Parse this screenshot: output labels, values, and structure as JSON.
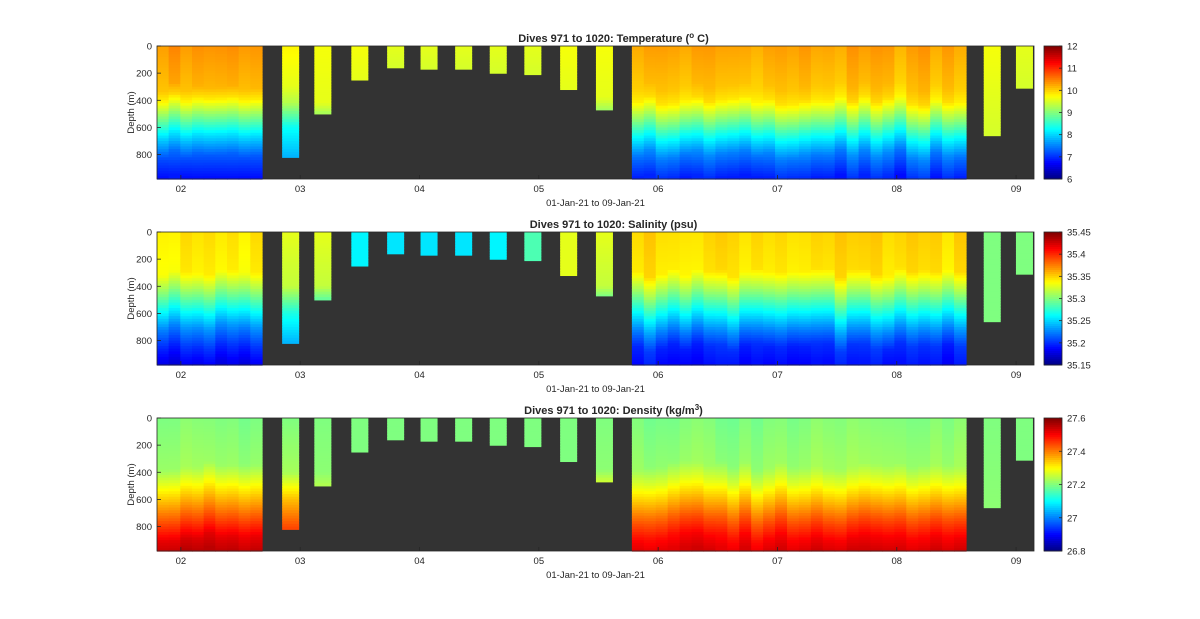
{
  "figure": {
    "panels": [
      {
        "title": "Dives 971 to 1020: Temperature (",
        "title_sup": "o",
        "title_after": " C)",
        "ylabel": "Depth (m)",
        "xlabel": "01-Jan-21 to 09-Jan-21",
        "yticks": [
          "0",
          "200",
          "400",
          "600",
          "800"
        ],
        "xticks": [
          "02",
          "03",
          "04",
          "05",
          "06",
          "07",
          "08",
          "09"
        ],
        "colorbar": {
          "ticks": [
            "12",
            "11",
            "10",
            "9",
            "8",
            "7",
            "6"
          ]
        }
      },
      {
        "title": "Dives 971 to 1020: Salinity (psu)",
        "title_sup": "",
        "title_after": "",
        "ylabel": "Depth (m)",
        "xlabel": "01-Jan-21 to 09-Jan-21",
        "yticks": [
          "0",
          "200",
          "400",
          "600",
          "800"
        ],
        "xticks": [
          "02",
          "03",
          "04",
          "05",
          "06",
          "07",
          "08",
          "09"
        ],
        "colorbar": {
          "ticks": [
            "35.45",
            "35.4",
            "35.35",
            "35.3",
            "35.25",
            "35.2",
            "35.15"
          ]
        }
      },
      {
        "title": "Dives 971 to 1020: Density (kg/m",
        "title_sup": "3",
        "title_after": ")",
        "ylabel": "Depth (m)",
        "xlabel": "01-Jan-21 to 09-Jan-21",
        "yticks": [
          "0",
          "200",
          "400",
          "600",
          "800"
        ],
        "xticks": [
          "02",
          "03",
          "04",
          "05",
          "06",
          "07",
          "08",
          "09"
        ],
        "colorbar": {
          "ticks": [
            "27.6",
            "27.4",
            "27.2",
            "27",
            "26.8"
          ]
        }
      }
    ]
  },
  "chart_data": [
    {
      "type": "heatmap",
      "title": "Dives 971 to 1020: Temperature (o C)",
      "xlabel": "01-Jan-21 to 09-Jan-21",
      "ylabel": "Depth (m)",
      "x_range_days": [
        1.8,
        9.15
      ],
      "ylim": [
        980,
        0
      ],
      "colorbar_range": [
        6,
        12
      ],
      "colormap": "jet",
      "background_color": "#333333",
      "dive_groups": [
        {
          "start_day": 1.8,
          "end_day": 2.68,
          "max_depth_m": 980,
          "profile": [
            [
              0,
              10.4
            ],
            [
              300,
              10.2
            ],
            [
              380,
              9.9
            ],
            [
              500,
              9.1
            ],
            [
              650,
              8.1
            ],
            [
              800,
              7.3
            ],
            [
              980,
              6.8
            ]
          ]
        },
        {
          "start_day": 5.78,
          "end_day": 8.58,
          "max_depth_m": 980,
          "profile": [
            [
              0,
              10.3
            ],
            [
              300,
              10.1
            ],
            [
              400,
              9.9
            ],
            [
              520,
              9.2
            ],
            [
              660,
              8.3
            ],
            [
              800,
              7.5
            ],
            [
              980,
              6.9
            ]
          ]
        }
      ],
      "short_dives": [
        {
          "center_day": 2.92,
          "max_depth_m": 820,
          "profile": [
            [
              0,
              9.8
            ],
            [
              300,
              9.6
            ],
            [
              420,
              9.3
            ],
            [
              600,
              8.3
            ],
            [
              820,
              7.8
            ]
          ]
        },
        {
          "center_day": 3.19,
          "max_depth_m": 500,
          "profile": [
            [
              0,
              9.7
            ],
            [
              420,
              9.6
            ],
            [
              500,
              9.2
            ]
          ]
        },
        {
          "center_day": 3.5,
          "max_depth_m": 250,
          "profile": [
            [
              0,
              9.7
            ],
            [
              250,
              9.6
            ]
          ]
        },
        {
          "center_day": 3.8,
          "max_depth_m": 160,
          "profile": [
            [
              0,
              9.6
            ],
            [
              160,
              9.5
            ]
          ]
        },
        {
          "center_day": 4.08,
          "max_depth_m": 170,
          "profile": [
            [
              0,
              9.6
            ],
            [
              170,
              9.5
            ]
          ]
        },
        {
          "center_day": 4.37,
          "max_depth_m": 170,
          "profile": [
            [
              0,
              9.6
            ],
            [
              170,
              9.5
            ]
          ]
        },
        {
          "center_day": 4.66,
          "max_depth_m": 200,
          "profile": [
            [
              0,
              9.6
            ],
            [
              200,
              9.5
            ]
          ]
        },
        {
          "center_day": 4.95,
          "max_depth_m": 210,
          "profile": [
            [
              0,
              9.6
            ],
            [
              210,
              9.5
            ]
          ]
        },
        {
          "center_day": 5.25,
          "max_depth_m": 320,
          "profile": [
            [
              0,
              9.7
            ],
            [
              320,
              9.6
            ]
          ]
        },
        {
          "center_day": 5.55,
          "max_depth_m": 470,
          "profile": [
            [
              0,
              9.7
            ],
            [
              380,
              9.6
            ],
            [
              470,
              9.2
            ]
          ]
        },
        {
          "center_day": 8.8,
          "max_depth_m": 660,
          "profile": [
            [
              0,
              9.7
            ],
            [
              660,
              9.5
            ]
          ]
        },
        {
          "center_day": 9.07,
          "max_depth_m": 310,
          "profile": [
            [
              0,
              9.6
            ],
            [
              310,
              9.5
            ]
          ]
        }
      ]
    },
    {
      "type": "heatmap",
      "title": "Dives 971 to 1020: Salinity (psu)",
      "xlabel": "01-Jan-21 to 09-Jan-21",
      "ylabel": "Depth (m)",
      "x_range_days": [
        1.8,
        9.15
      ],
      "ylim": [
        980,
        0
      ],
      "colorbar_range": [
        35.15,
        35.45
      ],
      "colormap": "jet",
      "background_color": "#333333",
      "dive_groups": [
        {
          "start_day": 1.8,
          "end_day": 2.68,
          "max_depth_m": 980,
          "profile": [
            [
              0,
              35.345
            ],
            [
              300,
              35.34
            ],
            [
              420,
              35.31
            ],
            [
              560,
              35.27
            ],
            [
              700,
              35.23
            ],
            [
              850,
              35.2
            ],
            [
              980,
              35.18
            ]
          ]
        },
        {
          "start_day": 5.78,
          "end_day": 8.58,
          "max_depth_m": 980,
          "profile": [
            [
              0,
              35.35
            ],
            [
              300,
              35.345
            ],
            [
              440,
              35.31
            ],
            [
              580,
              35.27
            ],
            [
              720,
              35.23
            ],
            [
              850,
              35.2
            ],
            [
              980,
              35.19
            ]
          ]
        }
      ],
      "short_dives": [
        {
          "center_day": 2.92,
          "max_depth_m": 820,
          "profile": [
            [
              0,
              35.33
            ],
            [
              400,
              35.32
            ],
            [
              600,
              35.27
            ],
            [
              820,
              35.24
            ]
          ]
        },
        {
          "center_day": 3.19,
          "max_depth_m": 500,
          "profile": [
            [
              0,
              35.33
            ],
            [
              400,
              35.32
            ],
            [
              500,
              35.29
            ]
          ]
        },
        {
          "center_day": 3.5,
          "max_depth_m": 250,
          "profile": [
            [
              0,
              35.26
            ],
            [
              250,
              35.26
            ]
          ]
        },
        {
          "center_day": 3.8,
          "max_depth_m": 160,
          "profile": [
            [
              0,
              35.255
            ],
            [
              160,
              35.255
            ]
          ]
        },
        {
          "center_day": 4.08,
          "max_depth_m": 170,
          "profile": [
            [
              0,
              35.255
            ],
            [
              170,
              35.255
            ]
          ]
        },
        {
          "center_day": 4.37,
          "max_depth_m": 170,
          "profile": [
            [
              0,
              35.255
            ],
            [
              170,
              35.255
            ]
          ]
        },
        {
          "center_day": 4.66,
          "max_depth_m": 200,
          "profile": [
            [
              0,
              35.26
            ],
            [
              200,
              35.26
            ]
          ]
        },
        {
          "center_day": 4.95,
          "max_depth_m": 210,
          "profile": [
            [
              0,
              35.285
            ],
            [
              210,
              35.285
            ]
          ]
        },
        {
          "center_day": 5.25,
          "max_depth_m": 320,
          "profile": [
            [
              0,
              35.33
            ],
            [
              320,
              35.33
            ]
          ]
        },
        {
          "center_day": 5.55,
          "max_depth_m": 470,
          "profile": [
            [
              0,
              35.33
            ],
            [
              400,
              35.32
            ],
            [
              470,
              35.3
            ]
          ]
        },
        {
          "center_day": 8.8,
          "max_depth_m": 660,
          "profile": [
            [
              0,
              35.3
            ],
            [
              660,
              35.3
            ]
          ]
        },
        {
          "center_day": 9.07,
          "max_depth_m": 310,
          "profile": [
            [
              0,
              35.3
            ],
            [
              310,
              35.3
            ]
          ]
        }
      ]
    },
    {
      "type": "heatmap",
      "title": "Dives 971 to 1020: Density (kg/m3)",
      "xlabel": "01-Jan-21 to 09-Jan-21",
      "ylabel": "Depth (m)",
      "x_range_days": [
        1.8,
        9.15
      ],
      "ylim": [
        980,
        0
      ],
      "colorbar_range": [
        26.8,
        27.6
      ],
      "colormap": "jet",
      "background_color": "#333333",
      "dive_groups": [
        {
          "start_day": 1.8,
          "end_day": 2.68,
          "max_depth_m": 980,
          "profile": [
            [
              0,
              27.2
            ],
            [
              350,
              27.22
            ],
            [
              480,
              27.29
            ],
            [
              620,
              27.37
            ],
            [
              760,
              27.45
            ],
            [
              880,
              27.52
            ],
            [
              980,
              27.55
            ]
          ]
        },
        {
          "start_day": 5.78,
          "end_day": 8.58,
          "max_depth_m": 980,
          "profile": [
            [
              0,
              27.2
            ],
            [
              350,
              27.22
            ],
            [
              480,
              27.28
            ],
            [
              620,
              27.36
            ],
            [
              760,
              27.44
            ],
            [
              880,
              27.5
            ],
            [
              980,
              27.53
            ]
          ]
        }
      ],
      "short_dives": [
        {
          "center_day": 2.92,
          "max_depth_m": 820,
          "profile": [
            [
              0,
              27.2
            ],
            [
              400,
              27.23
            ],
            [
              600,
              27.35
            ],
            [
              820,
              27.45
            ]
          ]
        },
        {
          "center_day": 3.19,
          "max_depth_m": 500,
          "profile": [
            [
              0,
              27.2
            ],
            [
              400,
              27.21
            ],
            [
              500,
              27.24
            ]
          ]
        },
        {
          "center_day": 3.5,
          "max_depth_m": 250,
          "profile": [
            [
              0,
              27.2
            ],
            [
              250,
              27.2
            ]
          ]
        },
        {
          "center_day": 3.8,
          "max_depth_m": 160,
          "profile": [
            [
              0,
              27.2
            ],
            [
              160,
              27.2
            ]
          ]
        },
        {
          "center_day": 4.08,
          "max_depth_m": 170,
          "profile": [
            [
              0,
              27.2
            ],
            [
              170,
              27.2
            ]
          ]
        },
        {
          "center_day": 4.37,
          "max_depth_m": 170,
          "profile": [
            [
              0,
              27.2
            ],
            [
              170,
              27.2
            ]
          ]
        },
        {
          "center_day": 4.66,
          "max_depth_m": 200,
          "profile": [
            [
              0,
              27.2
            ],
            [
              200,
              27.2
            ]
          ]
        },
        {
          "center_day": 4.95,
          "max_depth_m": 210,
          "profile": [
            [
              0,
              27.2
            ],
            [
              210,
              27.2
            ]
          ]
        },
        {
          "center_day": 5.25,
          "max_depth_m": 320,
          "profile": [
            [
              0,
              27.2
            ],
            [
              320,
              27.2
            ]
          ]
        },
        {
          "center_day": 5.55,
          "max_depth_m": 470,
          "profile": [
            [
              0,
              27.2
            ],
            [
              380,
              27.21
            ],
            [
              470,
              27.26
            ]
          ]
        },
        {
          "center_day": 8.8,
          "max_depth_m": 660,
          "profile": [
            [
              0,
              27.2
            ],
            [
              660,
              27.21
            ]
          ]
        },
        {
          "center_day": 9.07,
          "max_depth_m": 310,
          "profile": [
            [
              0,
              27.2
            ],
            [
              310,
              27.2
            ]
          ]
        }
      ]
    }
  ]
}
